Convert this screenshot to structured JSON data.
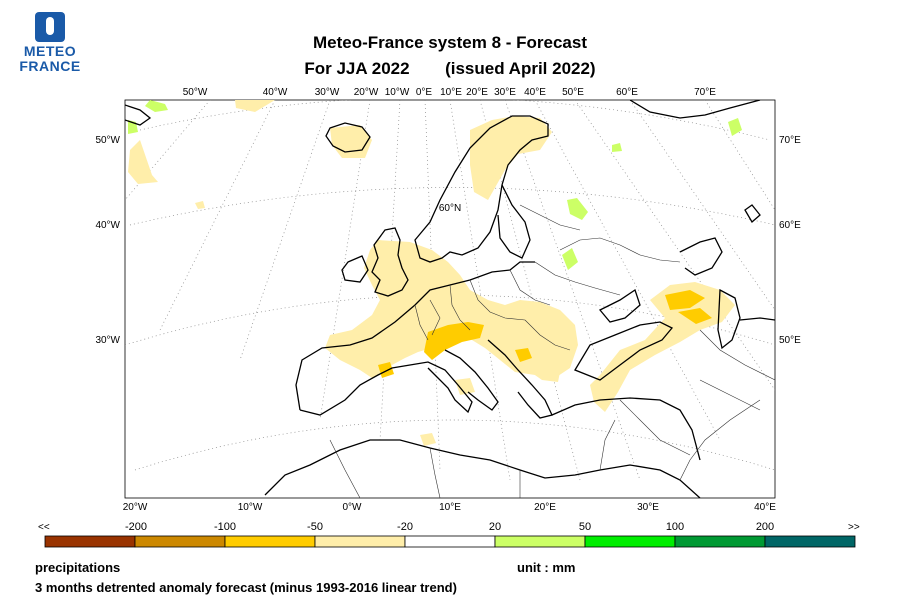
{
  "logo": {
    "line1": "METEO",
    "line2": "FRANCE"
  },
  "title": {
    "line1": "Meteo-France system 8  -  Forecast",
    "line2_a": "For JJA 2022",
    "line2_b": "(issued April 2022)"
  },
  "map": {
    "top_lon_labels": [
      "50°W",
      "40°W",
      "30°W",
      "20°W",
      "10°W",
      "0°E",
      "10°E",
      "20°E",
      "30°E",
      "40°E",
      "50°E",
      "60°E",
      "70°E"
    ],
    "left_lon_labels": [
      "50°W",
      "40°W",
      "30°W"
    ],
    "right_lon_labels": [
      "70°E",
      "60°E",
      "50°E"
    ],
    "bottom_lon_labels": [
      "20°W",
      "10°W",
      "0°W",
      "10°E",
      "20°E",
      "30°E",
      "40°E"
    ],
    "lat_label": "60°N"
  },
  "colorbar": {
    "left_arrow": "<<",
    "right_arrow": ">>",
    "ticks": [
      "-200",
      "-100",
      "-50",
      "-20",
      "20",
      "50",
      "100",
      "200"
    ],
    "colors": [
      "#993300",
      "#cc8800",
      "#ffcc00",
      "#ffeeaa",
      "#ffffff",
      "#ccff66",
      "#00ee00",
      "#009933",
      "#006666"
    ]
  },
  "footer": {
    "variable": "precipitations",
    "unit": "unit : mm",
    "description": "3 months detrented anomaly forecast (minus 1993-2016 linear trend)"
  }
}
